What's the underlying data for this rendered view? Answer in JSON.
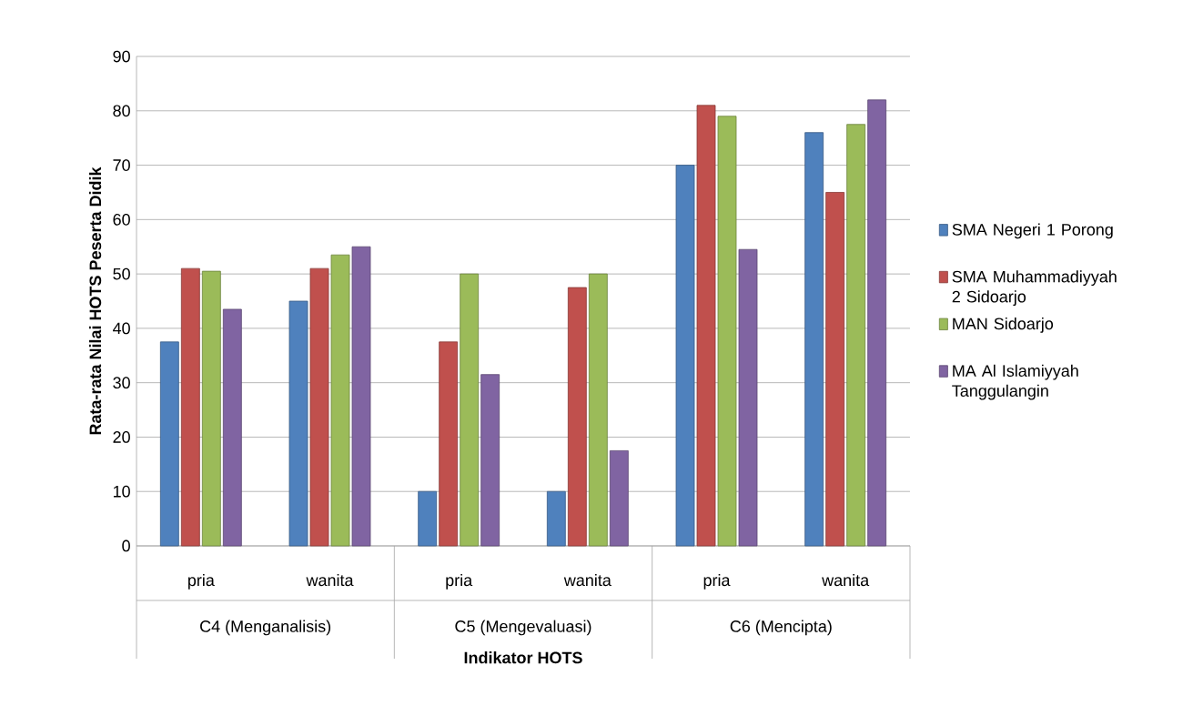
{
  "chart_data": {
    "type": "bar",
    "xlabel": "Indikator HOTS",
    "ylabel": "Rata-rata Nilai HOTS Peserta Didik",
    "categories": [
      "pria",
      "wanita",
      "pria",
      "wanita",
      "pria",
      "wanita"
    ],
    "annotations": [
      "C4 (Menganalisis)",
      "C5 (Mengevaluasi)",
      "C6 (Mencipta)"
    ],
    "series": [
      {
        "name": "SMA Negeri 1 Porong",
        "color": "#4f81bd",
        "values": [
          37.5,
          45,
          10,
          10,
          70,
          76
        ]
      },
      {
        "name": "SMA Muhammadiyyah 2 Sidoarjo",
        "color": "#c0504d",
        "values": [
          51,
          51,
          37.5,
          47.5,
          81,
          65
        ]
      },
      {
        "name": "MAN Sidoarjo",
        "color": "#9bbb59",
        "values": [
          50.5,
          53.5,
          50,
          50,
          79,
          77.5
        ]
      },
      {
        "name": "MA Al Islamiyyah Tanggulangin",
        "color": "#8064a2",
        "values": [
          43.5,
          55,
          31.5,
          17.5,
          54.5,
          82
        ]
      }
    ],
    "ylim": [
      0,
      90
    ],
    "yticks": [
      0,
      10,
      20,
      30,
      40,
      50,
      60,
      70,
      80,
      90
    ],
    "grid": "y",
    "legend": "right"
  }
}
